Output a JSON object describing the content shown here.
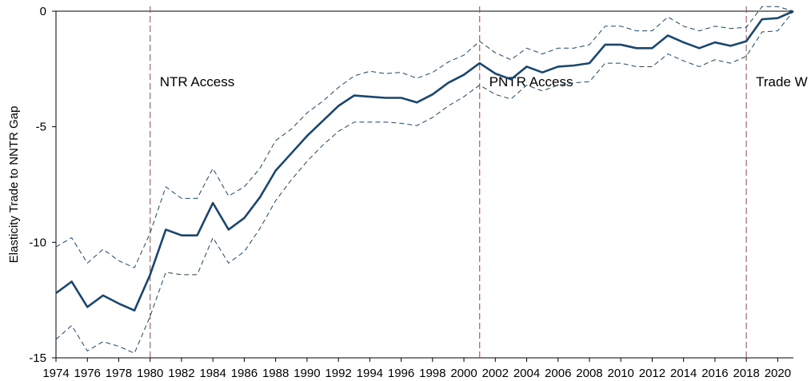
{
  "chart_data": {
    "type": "line",
    "y_label": "Elasticity Trade to NNTR Gap",
    "x": [
      1974,
      1975,
      1976,
      1977,
      1978,
      1979,
      1980,
      1981,
      1982,
      1983,
      1984,
      1985,
      1986,
      1987,
      1988,
      1989,
      1990,
      1991,
      1992,
      1993,
      1994,
      1995,
      1996,
      1997,
      1998,
      1999,
      2000,
      2001,
      2002,
      2003,
      2004,
      2005,
      2006,
      2007,
      2008,
      2009,
      2010,
      2011,
      2012,
      2013,
      2014,
      2015,
      2016,
      2017,
      2018,
      2019,
      2020,
      2021
    ],
    "series": [
      {
        "color": "#1a476f",
        "style": "solid",
        "values": [
          -12.2,
          -11.7,
          -12.8,
          -12.3,
          -12.65,
          -12.95,
          -11.4,
          -9.45,
          -9.7,
          -9.7,
          -8.3,
          -9.45,
          -8.95,
          -8.05,
          -6.9,
          -6.15,
          -5.4,
          -4.75,
          -4.1,
          -3.65,
          -3.7,
          -3.75,
          -3.75,
          -3.95,
          -3.6,
          -3.1,
          -2.75,
          -2.25,
          -2.7,
          -2.95,
          -2.4,
          -2.65,
          -2.4,
          -2.35,
          -2.25,
          -1.45,
          -1.45,
          -1.6,
          -1.6,
          -1.05,
          -1.35,
          -1.6,
          -1.35,
          -1.5,
          -1.3,
          -0.35,
          -0.3,
          0
        ]
      },
      {
        "color": "#1a476f",
        "style": "dashed",
        "values": [
          -10.2,
          -9.8,
          -10.9,
          -10.3,
          -10.8,
          -11.1,
          -9.6,
          -7.6,
          -8.1,
          -8.1,
          -6.8,
          -8.0,
          -7.6,
          -6.8,
          -5.6,
          -5.1,
          -4.4,
          -3.9,
          -3.3,
          -2.8,
          -2.6,
          -2.7,
          -2.65,
          -2.9,
          -2.65,
          -2.2,
          -1.9,
          -1.3,
          -1.8,
          -2.1,
          -1.6,
          -1.85,
          -1.6,
          -1.6,
          -1.45,
          -0.65,
          -0.65,
          -0.85,
          -0.85,
          -0.25,
          -0.65,
          -0.85,
          -0.65,
          -0.75,
          -0.7,
          0.2,
          0.2,
          0
        ]
      },
      {
        "color": "#1a476f",
        "style": "dashed",
        "values": [
          -14.2,
          -13.6,
          -14.7,
          -14.3,
          -14.5,
          -14.8,
          -13.2,
          -11.3,
          -11.4,
          -11.4,
          -9.8,
          -10.9,
          -10.4,
          -9.4,
          -8.2,
          -7.3,
          -6.5,
          -5.8,
          -5.2,
          -4.8,
          -4.8,
          -4.8,
          -4.85,
          -4.95,
          -4.6,
          -4.1,
          -3.7,
          -3.2,
          -3.6,
          -3.8,
          -3.2,
          -3.45,
          -3.2,
          -3.1,
          -3.05,
          -2.25,
          -2.25,
          -2.4,
          -2.4,
          -1.85,
          -2.15,
          -2.4,
          -2.1,
          -2.25,
          -1.95,
          -0.9,
          -0.85,
          0
        ]
      }
    ],
    "xlim": [
      1974,
      2021
    ],
    "xticks": [
      1974,
      1976,
      1978,
      1980,
      1982,
      1984,
      1986,
      1988,
      1990,
      1992,
      1994,
      1996,
      1998,
      2000,
      2002,
      2004,
      2006,
      2008,
      2010,
      2012,
      2014,
      2016,
      2018,
      2020
    ],
    "ylim": [
      -15,
      0
    ],
    "yticks": [
      0,
      -5,
      -10,
      -15
    ],
    "annotations": [
      {
        "x": 1980,
        "text": "NTR Access"
      },
      {
        "x": 2001,
        "text": "PNTR Access"
      },
      {
        "x": 2018,
        "text": "Trade W"
      }
    ],
    "annotation_color": "#b0444a"
  }
}
